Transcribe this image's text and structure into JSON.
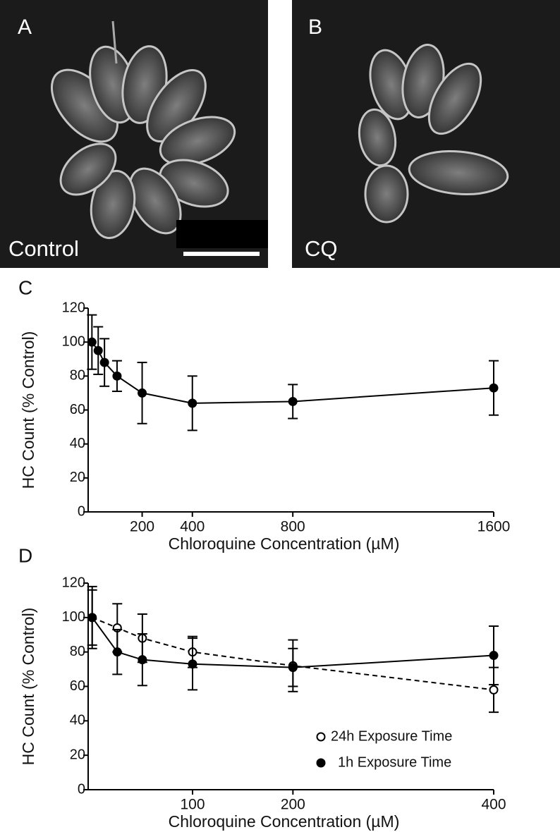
{
  "images": [
    {
      "panel": "A",
      "caption": "Control"
    },
    {
      "panel": "B",
      "caption": "CQ"
    }
  ],
  "chart_data": [
    {
      "type": "line",
      "panel": "C",
      "x_label": "Chloroquine Concentration (µM)",
      "y_label": "HC Count (% Control)",
      "x": [
        0,
        25,
        50,
        100,
        200,
        400,
        800,
        1600
      ],
      "series": [
        {
          "color": "#000000",
          "marker": "filled",
          "line_style": "solid",
          "values": [
            100,
            95,
            88,
            80,
            70,
            64,
            65,
            73
          ],
          "errors": [
            16,
            14,
            14,
            9,
            18,
            16,
            10,
            16
          ]
        }
      ],
      "xlim": [
        -15,
        1600
      ],
      "xticks": [
        200,
        400,
        800,
        1600
      ],
      "ylim": [
        0,
        120
      ],
      "yticks": [
        0,
        20,
        40,
        60,
        80,
        100,
        120
      ]
    },
    {
      "type": "line",
      "panel": "D",
      "x_label": "Chloroquine Concentration (µM)",
      "y_label": "HC Count (% Control)",
      "x": [
        0,
        25,
        50,
        100,
        200,
        400
      ],
      "series": [
        {
          "name": "24h Exposure Time",
          "color": "#000000",
          "marker": "open",
          "line_style": "dashed",
          "values": [
            100,
            94,
            88,
            80,
            72,
            58
          ],
          "errors": [
            18,
            14,
            14,
            9,
            15,
            13
          ]
        },
        {
          "name": "1h Exposure Time",
          "color": "#000000",
          "marker": "filled",
          "line_style": "solid",
          "values": [
            100,
            80,
            75.5,
            73,
            71,
            78
          ],
          "errors": [
            16,
            13,
            15,
            15,
            11,
            17
          ]
        }
      ],
      "legend": "lower right",
      "xlim": [
        -4,
        400
      ],
      "xticks": [
        100,
        200,
        400
      ],
      "ylim": [
        0,
        120
      ],
      "yticks": [
        0,
        20,
        40,
        60,
        80,
        100,
        120
      ]
    }
  ]
}
